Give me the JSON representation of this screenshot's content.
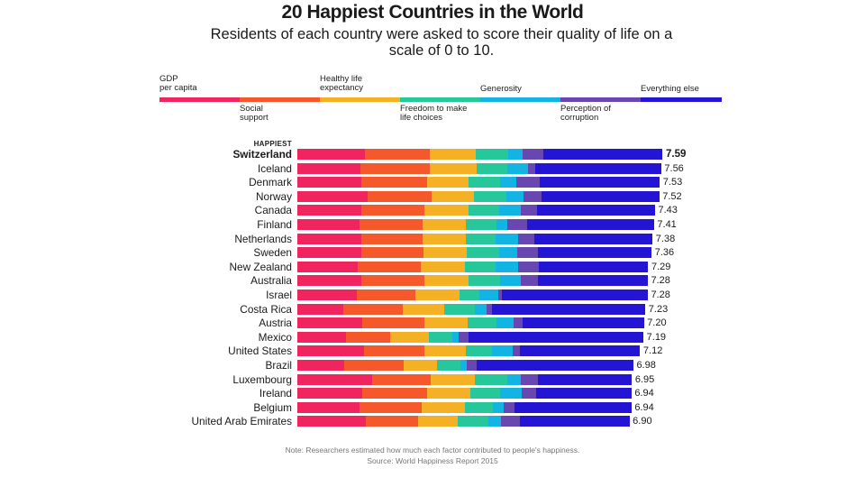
{
  "chart_data": {
    "type": "stacked-bar-horizontal",
    "title": "20 Happiest Countries in the World",
    "subtitle": "Residents of each country were asked to score their quality of life on a scale of 0 to 10.",
    "happiest_tag": "HAPPIEST",
    "xlim": [
      0,
      7.59
    ],
    "factors": [
      {
        "name": "GDP per capita",
        "label": "GDP\nper capita",
        "color": "#f0245f"
      },
      {
        "name": "Social support",
        "label": "Social\nsupport",
        "color": "#f5582b"
      },
      {
        "name": "Healthy life expectancy",
        "label": "Healthy life\nexpectancy",
        "color": "#f5b126"
      },
      {
        "name": "Freedom to make life choices",
        "label": "Freedom to make\nlife choices",
        "color": "#26c79a"
      },
      {
        "name": "Generosity",
        "label": "Generosity",
        "color": "#12b4e3"
      },
      {
        "name": "Perception of corruption",
        "label": "Perception of\ncorruption",
        "color": "#6848b0"
      },
      {
        "name": "Everything else",
        "label": "Everything else",
        "color": "#2414d4"
      }
    ],
    "countries": [
      {
        "name": "Switzerland",
        "score": "7.59",
        "values": [
          1.4,
          1.36,
          0.96,
          0.67,
          0.3,
          0.42,
          2.48
        ]
      },
      {
        "name": "Iceland",
        "score": "7.56",
        "values": [
          1.31,
          1.45,
          0.97,
          0.63,
          0.44,
          0.14,
          2.62
        ]
      },
      {
        "name": "Denmark",
        "score": "7.53",
        "values": [
          1.33,
          1.36,
          0.88,
          0.65,
          0.34,
          0.48,
          2.49
        ]
      },
      {
        "name": "Norway",
        "score": "7.52",
        "values": [
          1.46,
          1.33,
          0.89,
          0.67,
          0.35,
          0.37,
          2.45
        ]
      },
      {
        "name": "Canada",
        "score": "7.43",
        "values": [
          1.33,
          1.32,
          0.91,
          0.63,
          0.46,
          0.33,
          2.45
        ]
      },
      {
        "name": "Finland",
        "score": "7.41",
        "values": [
          1.29,
          1.32,
          0.89,
          0.64,
          0.23,
          0.41,
          2.63
        ]
      },
      {
        "name": "Netherlands",
        "score": "7.38",
        "values": [
          1.33,
          1.28,
          0.89,
          0.62,
          0.48,
          0.32,
          2.46
        ]
      },
      {
        "name": "Sweden",
        "score": "7.36",
        "values": [
          1.33,
          1.29,
          0.91,
          0.66,
          0.38,
          0.43,
          2.36
        ]
      },
      {
        "name": "New Zealand",
        "score": "7.29",
        "values": [
          1.25,
          1.32,
          0.91,
          0.64,
          0.48,
          0.42,
          2.27
        ]
      },
      {
        "name": "Australia",
        "score": "7.28",
        "values": [
          1.33,
          1.31,
          0.93,
          0.65,
          0.43,
          0.36,
          2.27
        ]
      },
      {
        "name": "Israel",
        "score": "7.28",
        "values": [
          1.23,
          1.23,
          0.91,
          0.41,
          0.4,
          0.07,
          3.03
        ]
      },
      {
        "name": "Costa Rica",
        "score": "7.23",
        "values": [
          0.96,
          1.24,
          0.86,
          0.63,
          0.24,
          0.11,
          3.19
        ]
      },
      {
        "name": "Austria",
        "score": "7.20",
        "values": [
          1.34,
          1.31,
          0.9,
          0.6,
          0.35,
          0.18,
          2.52
        ]
      },
      {
        "name": "Mexico",
        "score": "7.19",
        "values": [
          1.02,
          0.91,
          0.81,
          0.48,
          0.14,
          0.21,
          3.62
        ]
      },
      {
        "name": "United States",
        "score": "7.12",
        "values": [
          1.39,
          1.25,
          0.86,
          0.55,
          0.42,
          0.15,
          2.5
        ]
      },
      {
        "name": "Brazil",
        "score": "6.98",
        "values": [
          0.98,
          1.23,
          0.69,
          0.49,
          0.14,
          0.2,
          3.25
        ]
      },
      {
        "name": "Luxembourg",
        "score": "6.95",
        "values": [
          1.56,
          1.21,
          0.93,
          0.66,
          0.28,
          0.37,
          1.94
        ]
      },
      {
        "name": "Ireland",
        "score": "6.94",
        "values": [
          1.34,
          1.36,
          0.89,
          0.62,
          0.46,
          0.29,
          1.98
        ]
      },
      {
        "name": "Belgium",
        "score": "6.94",
        "values": [
          1.3,
          1.29,
          0.89,
          0.58,
          0.23,
          0.23,
          2.42
        ]
      },
      {
        "name": "United Arab Emirates",
        "score": "6.90",
        "values": [
          1.42,
          1.1,
          0.81,
          0.64,
          0.26,
          0.39,
          2.28
        ]
      }
    ],
    "note": "Note: Researchers estimated how much each factor contributed to people's happiness.",
    "source": "Source: World Happiness Report 2015"
  }
}
